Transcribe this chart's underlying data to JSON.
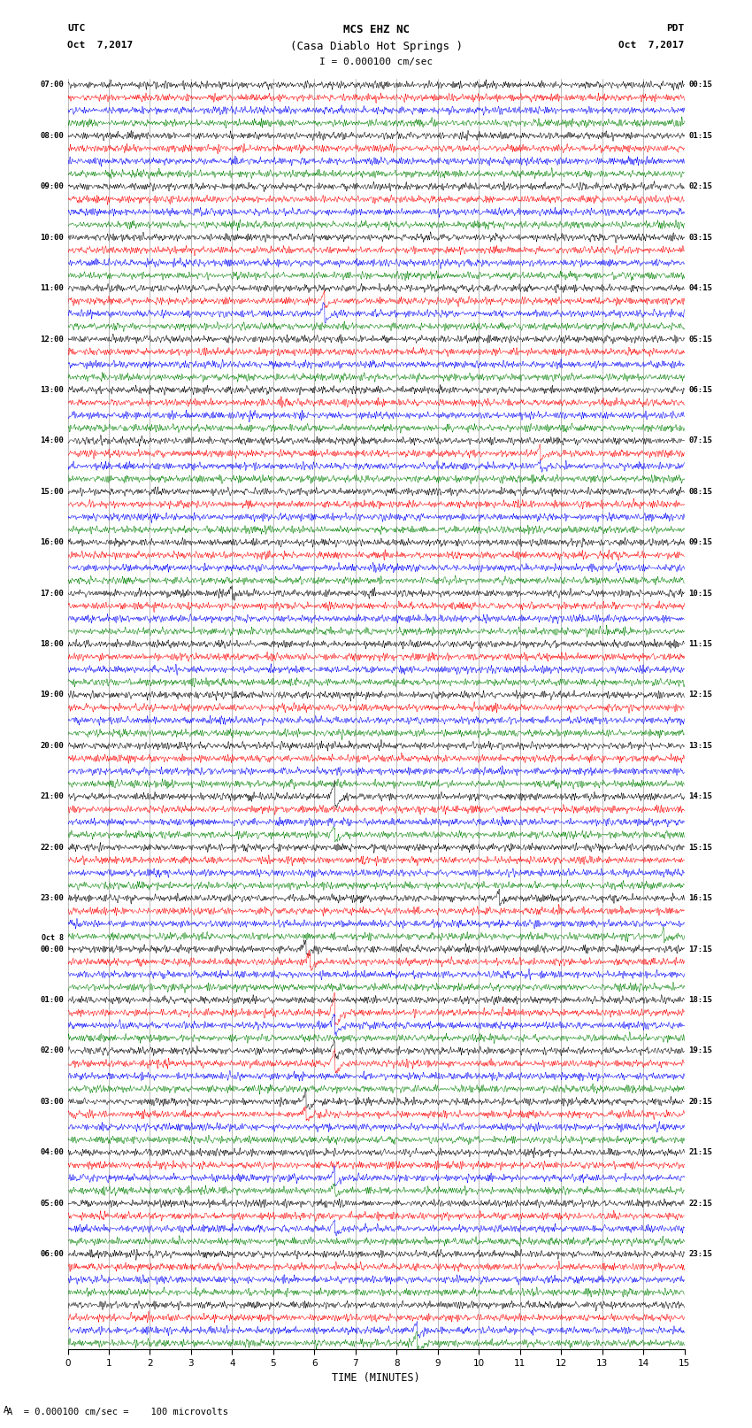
{
  "title_line1": "MCS EHZ NC",
  "title_line2": "(Casa Diablo Hot Springs )",
  "title_line3": "I = 0.000100 cm/sec",
  "left_label_top": "UTC",
  "left_label_date": "Oct  7,2017",
  "right_label_top": "PDT",
  "right_label_date": "Oct  7,2017",
  "left_time_labels": [
    "07:00",
    "08:00",
    "09:00",
    "10:00",
    "11:00",
    "12:00",
    "13:00",
    "14:00",
    "15:00",
    "16:00",
    "17:00",
    "18:00",
    "19:00",
    "20:00",
    "21:00",
    "22:00",
    "23:00",
    "Oct 8\n00:00",
    "01:00",
    "02:00",
    "03:00",
    "04:00",
    "05:00",
    "06:00"
  ],
  "right_time_labels": [
    "00:15",
    "01:15",
    "02:15",
    "03:15",
    "04:15",
    "05:15",
    "06:15",
    "07:15",
    "08:15",
    "09:15",
    "10:15",
    "11:15",
    "12:15",
    "13:15",
    "14:15",
    "15:15",
    "16:15",
    "17:15",
    "18:15",
    "19:15",
    "20:15",
    "21:15",
    "22:15",
    "23:15"
  ],
  "colors": [
    "black",
    "red",
    "blue",
    "green"
  ],
  "n_rows": 25,
  "traces_per_row": 4,
  "xlabel": "TIME (MINUTES)",
  "xticks": [
    0,
    1,
    2,
    3,
    4,
    5,
    6,
    7,
    8,
    9,
    10,
    11,
    12,
    13,
    14,
    15
  ],
  "xmin": 0,
  "xmax": 15,
  "scale_label": "A  = 0.000100 cm/sec =    100 microvolts",
  "background_color": "white",
  "line_width": 0.35,
  "seed": 42,
  "spike_events": [
    {
      "row": 4,
      "trace": 2,
      "time": 6.25,
      "amplitude": 2.5
    },
    {
      "row": 4,
      "trace": 1,
      "time": 6.25,
      "amplitude": 2.0
    },
    {
      "row": 7,
      "trace": 1,
      "time": 11.5,
      "amplitude": 1.8
    },
    {
      "row": 7,
      "trace": 2,
      "time": 11.5,
      "amplitude": 1.5
    },
    {
      "row": 10,
      "trace": 0,
      "time": 4.0,
      "amplitude": 1.2
    },
    {
      "row": 14,
      "trace": 0,
      "time": 6.5,
      "amplitude": 3.5
    },
    {
      "row": 14,
      "trace": 3,
      "time": 6.5,
      "amplitude": 2.0
    },
    {
      "row": 16,
      "trace": 0,
      "time": 10.5,
      "amplitude": 1.8
    },
    {
      "row": 16,
      "trace": 3,
      "time": 14.5,
      "amplitude": 1.5
    },
    {
      "row": 17,
      "trace": 0,
      "time": 5.8,
      "amplitude": 1.8
    },
    {
      "row": 17,
      "trace": 1,
      "time": 5.9,
      "amplitude": 2.2
    },
    {
      "row": 18,
      "trace": 1,
      "time": 6.5,
      "amplitude": 4.5
    },
    {
      "row": 18,
      "trace": 2,
      "time": 6.5,
      "amplitude": 3.0
    },
    {
      "row": 19,
      "trace": 0,
      "time": 6.5,
      "amplitude": 2.2
    },
    {
      "row": 19,
      "trace": 1,
      "time": 6.5,
      "amplitude": 3.0
    },
    {
      "row": 20,
      "trace": 0,
      "time": 5.8,
      "amplitude": 2.5
    },
    {
      "row": 20,
      "trace": 1,
      "time": 5.8,
      "amplitude": 2.0
    },
    {
      "row": 21,
      "trace": 2,
      "time": 6.5,
      "amplitude": 2.2
    },
    {
      "row": 21,
      "trace": 3,
      "time": 6.5,
      "amplitude": 1.5
    },
    {
      "row": 22,
      "trace": 2,
      "time": 6.5,
      "amplitude": 2.0
    },
    {
      "row": 24,
      "trace": 3,
      "time": 8.5,
      "amplitude": 2.5
    },
    {
      "row": 24,
      "trace": 2,
      "time": 8.5,
      "amplitude": 2.0
    }
  ]
}
